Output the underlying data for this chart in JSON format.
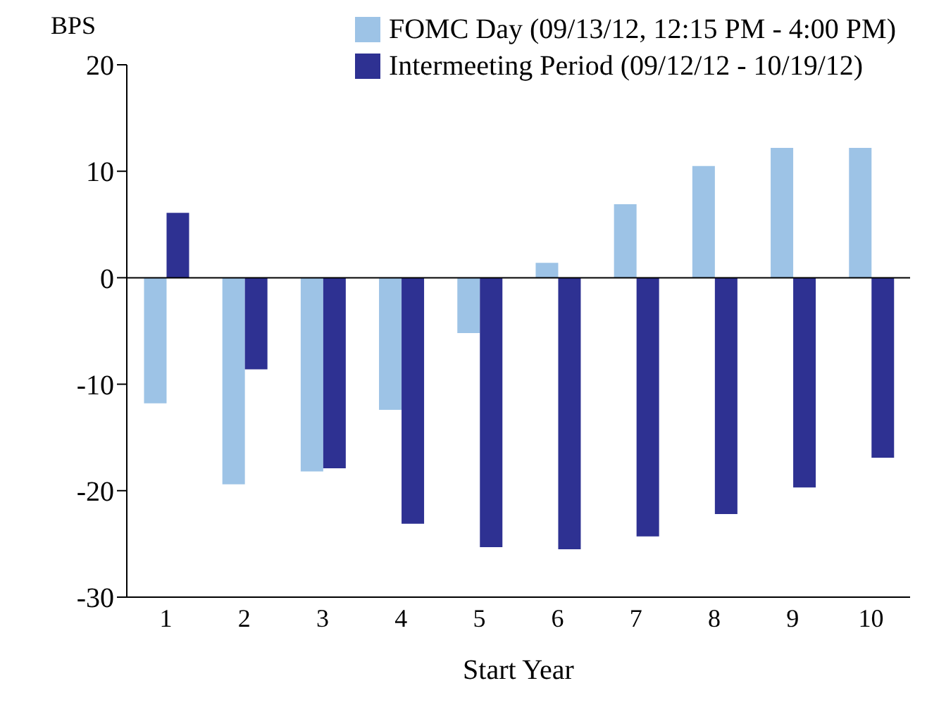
{
  "chart_data": {
    "type": "bar",
    "ylabel": "BPS",
    "xlabel": "Start Year",
    "categories": [
      "1",
      "2",
      "3",
      "4",
      "5",
      "6",
      "7",
      "8",
      "9",
      "10"
    ],
    "series": [
      {
        "name": "FOMC Day (09/13/12, 12:15 PM - 4:00 PM)",
        "color": "#9dc3e6",
        "values": [
          -11.8,
          -19.4,
          -18.2,
          -12.4,
          -5.2,
          1.4,
          6.9,
          10.5,
          12.2,
          12.2
        ]
      },
      {
        "name": "Intermeeting Period (09/12/12 - 10/19/12)",
        "color": "#2e3192",
        "values": [
          6.1,
          -8.6,
          -17.9,
          -23.1,
          -25.3,
          -25.5,
          -24.3,
          -22.2,
          -19.7,
          -16.9
        ]
      }
    ],
    "ylim": [
      -30,
      20
    ],
    "yticks": [
      -30,
      -20,
      -10,
      0,
      10,
      20
    ],
    "ref_lines": [
      {
        "axis": "y",
        "value": 0
      }
    ],
    "grid": false,
    "legend": "top right"
  }
}
